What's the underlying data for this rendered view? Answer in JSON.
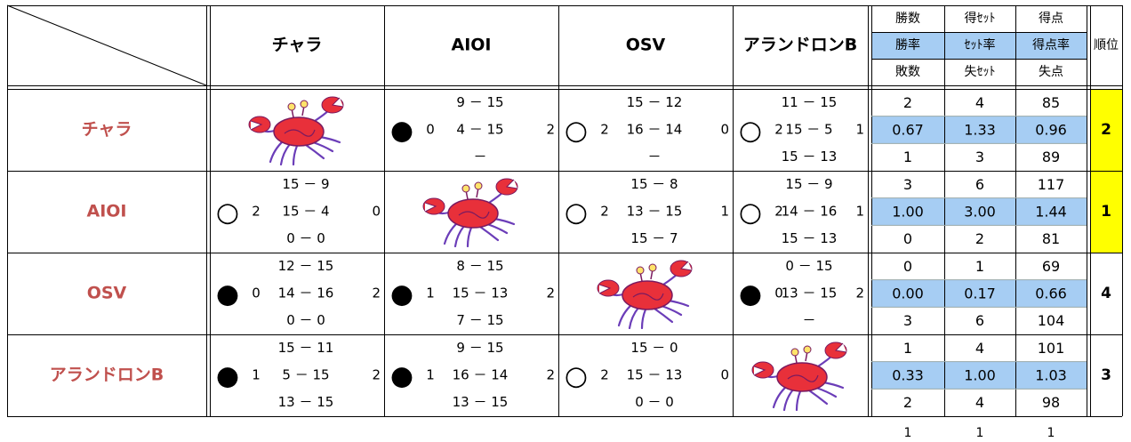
{
  "header": {
    "teams": [
      "チャラ",
      "AIOI",
      "OSV",
      "アランドロンB"
    ],
    "stat_labels": [
      [
        "勝数",
        "得ｾｯﾄ",
        "得点"
      ],
      [
        "勝率",
        "ｾｯﾄ率",
        "得点率"
      ],
      [
        "敗数",
        "失ｾｯﾄ",
        "失点"
      ]
    ],
    "rank_label": "順位"
  },
  "rows": [
    {
      "team": "チャラ",
      "cells": [
        null,
        {
          "mark": "●",
          "sets_won": 0,
          "sets_lost": 2,
          "games": [
            "9 － 15",
            "4 － 15",
            "－"
          ]
        },
        {
          "mark": "○",
          "sets_won": 2,
          "sets_lost": 0,
          "games": [
            "15 － 12",
            "16 － 14",
            "－"
          ]
        },
        {
          "mark": "○",
          "sets_won": 2,
          "sets_lost": 1,
          "games": [
            "11 － 15",
            "15 － 5",
            "15 － 13"
          ]
        }
      ],
      "stats": [
        [
          2,
          4,
          85
        ],
        [
          "0.67",
          "1.33",
          "0.96"
        ],
        [
          1,
          3,
          89
        ]
      ],
      "rank": 2
    },
    {
      "team": "AIOI",
      "cells": [
        {
          "mark": "○",
          "sets_won": 2,
          "sets_lost": 0,
          "games": [
            "15 － 9",
            "15 － 4",
            "0 － 0"
          ]
        },
        null,
        {
          "mark": "○",
          "sets_won": 2,
          "sets_lost": 1,
          "games": [
            "15 － 8",
            "13 － 15",
            "15 － 7"
          ]
        },
        {
          "mark": "○",
          "sets_won": 2,
          "sets_lost": 1,
          "games": [
            "15 － 9",
            "14 － 16",
            "15 － 13"
          ]
        }
      ],
      "stats": [
        [
          3,
          6,
          117
        ],
        [
          "1.00",
          "3.00",
          "1.44"
        ],
        [
          0,
          2,
          81
        ]
      ],
      "rank": 1
    },
    {
      "team": "OSV",
      "cells": [
        {
          "mark": "●",
          "sets_won": 0,
          "sets_lost": 2,
          "games": [
            "12 － 15",
            "14 － 16",
            "0 － 0"
          ]
        },
        {
          "mark": "●",
          "sets_won": 1,
          "sets_lost": 2,
          "games": [
            "8 － 15",
            "15 － 13",
            "7 － 15"
          ]
        },
        null,
        {
          "mark": "●",
          "sets_won": 0,
          "sets_lost": 2,
          "games": [
            "0 － 15",
            "13 － 15",
            "－"
          ]
        }
      ],
      "stats": [
        [
          0,
          1,
          69
        ],
        [
          "0.00",
          "0.17",
          "0.66"
        ],
        [
          3,
          6,
          104
        ]
      ],
      "rank": 4
    },
    {
      "team": "アランドロンB",
      "cells": [
        {
          "mark": "●",
          "sets_won": 1,
          "sets_lost": 2,
          "games": [
            "15 － 11",
            "5 － 15",
            "13 － 15"
          ]
        },
        {
          "mark": "●",
          "sets_won": 1,
          "sets_lost": 2,
          "games": [
            "9 － 15",
            "16 － 14",
            "13 － 15"
          ]
        },
        {
          "mark": "○",
          "sets_won": 2,
          "sets_lost": 0,
          "games": [
            "15 － 0",
            "15 － 13",
            "0 － 0"
          ]
        },
        null
      ],
      "stats": [
        [
          1,
          4,
          101
        ],
        [
          "0.33",
          "1.00",
          "1.03"
        ],
        [
          2,
          4,
          98
        ]
      ],
      "rank": 3
    }
  ],
  "footer": [
    1,
    1,
    1
  ]
}
